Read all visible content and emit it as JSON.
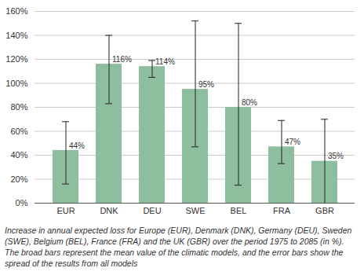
{
  "chart_data": {
    "type": "bar",
    "caption": "Increase in annual expected loss for Europe (EUR), Denmark (DNK), Germany (DEU), Sweden (SWE), Belgium (BEL), France (FRA) and the UK (GBR) over the period 1975 to 2085 (in %). The broad bars represent the mean value of the climatic models, and the error bars show the spread of the results from all models",
    "categories": [
      "EUR",
      "DNK",
      "DEU",
      "SWE",
      "BEL",
      "FRA",
      "GBR"
    ],
    "values": [
      44,
      116,
      114,
      95,
      80,
      47,
      35
    ],
    "value_labels": [
      "44%",
      "116%",
      "114%",
      "95%",
      "80%",
      "47%",
      "35%"
    ],
    "error_low": [
      16,
      83,
      105,
      47,
      15,
      33,
      0
    ],
    "error_high": [
      68,
      140,
      119,
      152,
      150,
      69,
      70
    ],
    "color": "#8dbf9f",
    "ylim": [
      0,
      160
    ],
    "yticks": [
      {
        "value": 0,
        "label": "0%"
      },
      {
        "value": 20,
        "label": "20%"
      },
      {
        "value": 40,
        "label": "40%"
      },
      {
        "value": 60,
        "label": "60%"
      },
      {
        "value": 80,
        "label": "80%"
      },
      {
        "value": 100,
        "label": "100%"
      },
      {
        "value": 120,
        "label": "120%"
      },
      {
        "value": 140,
        "label": "140%"
      },
      {
        "value": 160,
        "label": "160%"
      }
    ],
    "grid": true,
    "data_labels": true
  }
}
